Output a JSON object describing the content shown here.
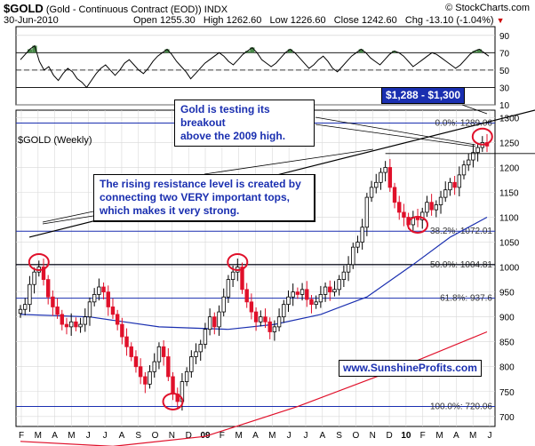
{
  "header": {
    "symbol": "$GOLD",
    "name": "(Gold - Continuous Contract (EOD))",
    "exchange": "INDX",
    "source": "© StockCharts.com",
    "date": "30-Jun-2010",
    "open_label": "Open",
    "open": "1255.30",
    "high_label": "High",
    "high": "1262.60",
    "low_label": "Low",
    "low": "1226.60",
    "close_label": "Close",
    "close": "1242.60",
    "chg_label": "Chg",
    "chg": "-13.10 (-1.04%)"
  },
  "chart_data": [
    {
      "type": "line",
      "name": "oscillator",
      "ylim": [
        10,
        100
      ],
      "y_ticks": [
        "90",
        "70",
        "50",
        "30",
        "10"
      ],
      "values": [
        62,
        68,
        74,
        78,
        60,
        50,
        54,
        44,
        38,
        46,
        52,
        48,
        40,
        36,
        30,
        38,
        46,
        52,
        56,
        50,
        44,
        50,
        58,
        62,
        56,
        50,
        46,
        52,
        60,
        66,
        70,
        74,
        68,
        60,
        54,
        48,
        40,
        46,
        52,
        58,
        62,
        66,
        70,
        66,
        60,
        56,
        62,
        68,
        72,
        76,
        70,
        62,
        58,
        54,
        58,
        64,
        70,
        74,
        70,
        64,
        58,
        52,
        56,
        62,
        66,
        60,
        52,
        48,
        54,
        60,
        66,
        70,
        74,
        70,
        64,
        60,
        56,
        62,
        68,
        72,
        70,
        66,
        60,
        54,
        58,
        62,
        66,
        70,
        68,
        64,
        60,
        56,
        52,
        56,
        62,
        68,
        72,
        74,
        70,
        66
      ]
    },
    {
      "type": "candlestick",
      "title": "$GOLD (Weekly)",
      "ylim": [
        680,
        1315
      ],
      "y_ticks": [
        700,
        750,
        800,
        850,
        900,
        950,
        1000,
        1050,
        1100,
        1150,
        1200,
        1250,
        1300
      ],
      "y_tick_labels": [
        "700",
        "750",
        "800",
        "850",
        "900",
        "950",
        "1000",
        "1050",
        "1100",
        "1150",
        "1200",
        "1250",
        "1300"
      ],
      "x_tick_labels": [
        "F",
        "M",
        "A",
        "M",
        "J",
        "J",
        "A",
        "S",
        "O",
        "N",
        "D",
        "09",
        "F",
        "M",
        "A",
        "M",
        "J",
        "J",
        "A",
        "S",
        "O",
        "N",
        "D",
        "10",
        "F",
        "M",
        "A",
        "M",
        "J"
      ],
      "close": [
        915,
        925,
        965,
        990,
        1000,
        975,
        940,
        920,
        905,
        885,
        880,
        890,
        880,
        885,
        900,
        930,
        945,
        960,
        950,
        920,
        905,
        885,
        860,
        840,
        820,
        800,
        780,
        765,
        790,
        810,
        840,
        820,
        780,
        745,
        730,
        770,
        790,
        820,
        830,
        845,
        875,
        900,
        880,
        910,
        940,
        975,
        990,
        1000,
        955,
        930,
        910,
        890,
        900,
        890,
        870,
        880,
        900,
        925,
        940,
        950,
        945,
        955,
        935,
        925,
        930,
        945,
        960,
        950,
        955,
        975,
        990,
        1005,
        1040,
        1050,
        1080,
        1140,
        1160,
        1170,
        1190,
        1200,
        1160,
        1130,
        1110,
        1100,
        1085,
        1100,
        1095,
        1110,
        1130,
        1115,
        1125,
        1140,
        1155,
        1170,
        1160,
        1185,
        1205,
        1215,
        1230,
        1240,
        1250,
        1243
      ],
      "ma_50": [
        [
          0,
          905
        ],
        [
          15,
          900
        ],
        [
          30,
          880
        ],
        [
          45,
          875
        ],
        [
          55,
          885
        ],
        [
          65,
          905
        ],
        [
          75,
          940
        ],
        [
          85,
          1005
        ],
        [
          93,
          1060
        ],
        [
          101,
          1100
        ]
      ],
      "ma_200": [
        [
          0,
          650
        ],
        [
          20,
          640
        ],
        [
          40,
          660
        ],
        [
          60,
          720
        ],
        [
          80,
          790
        ],
        [
          101,
          870
        ]
      ],
      "fibonacci": [
        {
          "label": "0.0%: 1289.06",
          "value": 1289.06
        },
        {
          "label": "38.2%: 1072.01",
          "value": 1072.01
        },
        {
          "label": "50.0%: 1004.81",
          "value": 1004.81
        },
        {
          "label": "61.8%: 937.6",
          "value": 937.6
        },
        {
          "label": "100.0%: 720.06",
          "value": 720.06
        }
      ],
      "annotations": {
        "breakout": [
          "Gold is testing its breakout",
          "above the 2009 high."
        ],
        "resistance": [
          "The rising resistance level is created by",
          "connecting two VERY important tops,",
          "which makes it very strong."
        ],
        "target": "$1,288 - $1,300",
        "site": "www.SunshineProfits.com"
      },
      "colors": {
        "up": "#000000",
        "down": "#e0102a",
        "ma_50": "#1a2fb0",
        "ma_200": "#e0102a",
        "fib": "#1a2fb0",
        "circle": "#e0102a",
        "annot": "#1a2fb0"
      }
    }
  ]
}
